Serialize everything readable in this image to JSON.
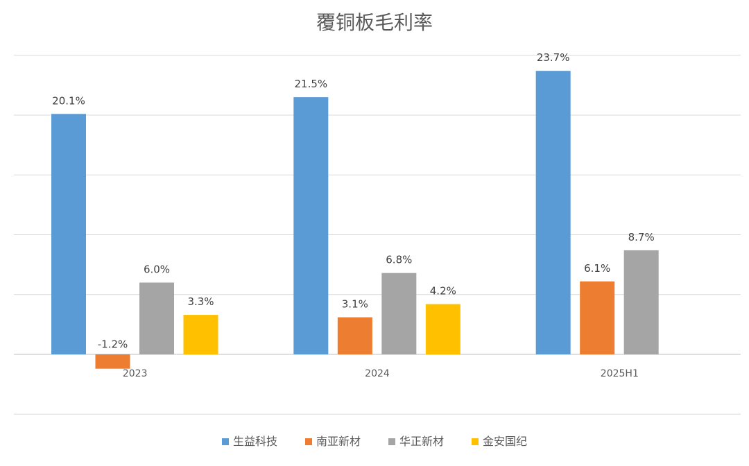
{
  "chart_data": {
    "type": "bar",
    "title": "覆铜板毛利率",
    "xlabel": "",
    "ylabel": "",
    "categories": [
      "2023",
      "2024",
      "2025H1"
    ],
    "series": [
      {
        "name": "生益科技",
        "color": "#5b9bd5",
        "values": [
          20.1,
          21.5,
          23.7
        ],
        "labels": [
          "20.1%",
          "21.5%",
          "23.7%"
        ]
      },
      {
        "name": "南亚新材",
        "color": "#ed7d31",
        "values": [
          -1.2,
          3.1,
          6.1
        ],
        "labels": [
          "-1.2%",
          "3.1%",
          "6.1%"
        ]
      },
      {
        "name": "华正新材",
        "color": "#a5a5a5",
        "values": [
          6.0,
          6.8,
          8.7
        ],
        "labels": [
          "6.0%",
          "6.8%",
          "8.7%"
        ]
      },
      {
        "name": "金安国纪",
        "color": "#ffc000",
        "values": [
          3.3,
          4.2,
          null
        ],
        "labels": [
          "3.3%",
          "4.2%",
          ""
        ]
      }
    ],
    "ylim": [
      -5,
      25
    ],
    "y_grid_step": 5,
    "grid": true,
    "legend_position": "bottom"
  }
}
